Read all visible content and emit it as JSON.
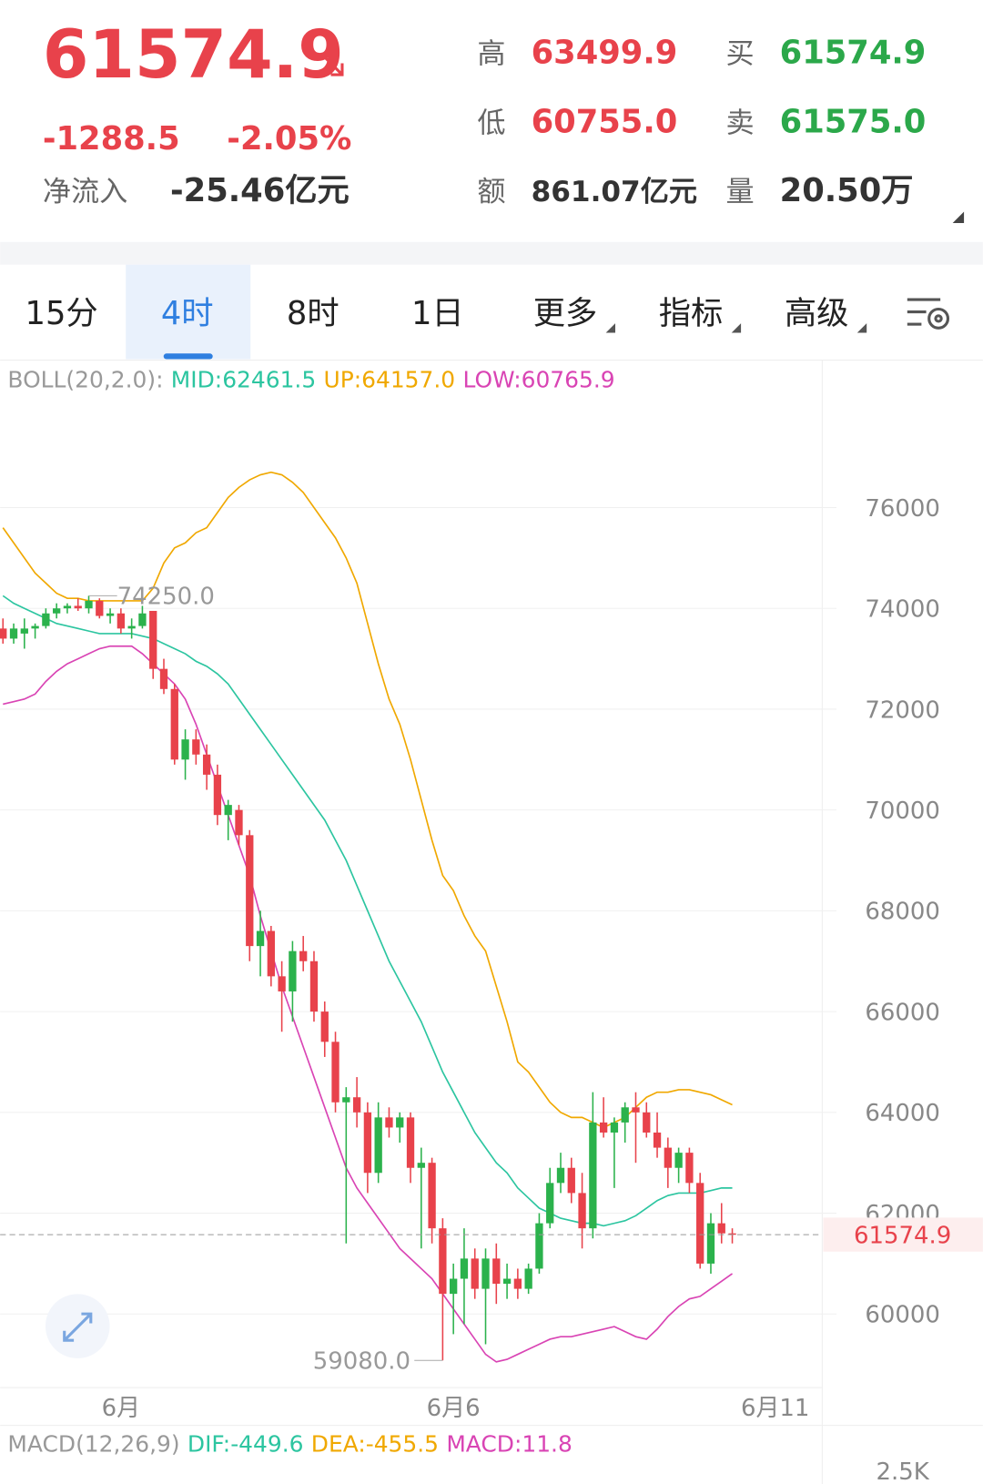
{
  "quote": {
    "price": "61574.9",
    "change": "-1288.5",
    "change_pct": "-2.05%",
    "inflow_label": "净流入",
    "inflow": "-25.46亿元"
  },
  "stats": [
    {
      "label": "高",
      "value": "63499.9",
      "color": "#e8424b"
    },
    {
      "label": "买",
      "value": "61574.9",
      "color": "#2ba84a"
    },
    {
      "label": "低",
      "value": "60755.0",
      "color": "#e8424b"
    },
    {
      "label": "卖",
      "value": "61575.0",
      "color": "#2ba84a"
    },
    {
      "label": "额",
      "value": "861.07亿元",
      "color": "#333333"
    },
    {
      "label": "量",
      "value": "20.50万",
      "color": "#333333"
    }
  ],
  "tabs": [
    "15分",
    "4时",
    "8时",
    "1日",
    "更多",
    "指标",
    "高级"
  ],
  "active_tab": 1,
  "chart_data": {
    "type": "candlestick",
    "legend_title": "BOLL(20,2.0):",
    "categories": [
      null,
      null,
      null,
      null,
      null,
      null,
      null,
      null,
      null,
      null,
      null,
      "6月",
      null,
      null,
      null,
      null,
      null,
      null,
      null,
      null,
      null,
      null,
      null,
      null,
      null,
      null,
      null,
      null,
      null,
      null,
      null,
      null,
      null,
      null,
      null,
      null,
      null,
      null,
      null,
      null,
      null,
      null,
      "6月6",
      null,
      null,
      null,
      null,
      null,
      null,
      null,
      null,
      null,
      null,
      null,
      null,
      null,
      null,
      null,
      null,
      null,
      null,
      null,
      null,
      null,
      null,
      null,
      null,
      null,
      null,
      null,
      null,
      null,
      "6月11"
    ],
    "open": [
      73600,
      73400,
      73500,
      73600,
      73650,
      73900,
      74000,
      74050,
      74000,
      74150,
      73850,
      73900,
      73600,
      73650,
      73950,
      72800,
      72400,
      71000,
      71400,
      71100,
      70700,
      69900,
      70000,
      69500,
      67300,
      67600,
      66700,
      66400,
      67200,
      67000,
      66000,
      65400,
      64200,
      64300,
      64000,
      62800,
      63900,
      63700,
      63900,
      62900,
      63000,
      61700,
      60400,
      60700,
      61100,
      60500,
      61100,
      60600,
      60700,
      60500,
      60900,
      61800,
      62600,
      62900,
      62400,
      61700,
      63800,
      63600,
      63800,
      64100,
      64000,
      63600,
      63300,
      62900,
      63200,
      62600,
      61000,
      61800,
      61600,
      null,
      null,
      null,
      null
    ],
    "high": [
      73800,
      73700,
      73800,
      73700,
      74000,
      74100,
      74100,
      74200,
      74250,
      74200,
      74000,
      74000,
      73800,
      74050,
      73950,
      73000,
      72500,
      71600,
      71600,
      71300,
      70900,
      70200,
      70100,
      69600,
      68000,
      67700,
      67000,
      67400,
      67500,
      67200,
      66200,
      65600,
      64500,
      64700,
      64200,
      64200,
      64100,
      64000,
      64000,
      63300,
      63100,
      61900,
      61000,
      61700,
      61300,
      61300,
      61400,
      61000,
      60900,
      61000,
      62000,
      62900,
      63200,
      63100,
      62800,
      64400,
      64300,
      63900,
      64200,
      64400,
      64200,
      64000,
      63500,
      63300,
      63300,
      62800,
      62000,
      62200,
      61700,
      null,
      null,
      null,
      null
    ],
    "low": [
      73300,
      73300,
      73200,
      73400,
      73600,
      73800,
      73900,
      73950,
      73900,
      73800,
      73700,
      73500,
      73400,
      73600,
      72600,
      72300,
      70900,
      70600,
      70900,
      70400,
      69700,
      69400,
      69300,
      67000,
      66700,
      66500,
      65600,
      65800,
      66800,
      65800,
      65100,
      64000,
      61400,
      63700,
      62400,
      62600,
      63500,
      63400,
      62600,
      61300,
      61400,
      59080,
      59600,
      59800,
      60300,
      59400,
      60200,
      60300,
      60300,
      60400,
      60800,
      61700,
      62400,
      62200,
      61300,
      61500,
      63500,
      62500,
      63400,
      63000,
      63500,
      63100,
      62500,
      62600,
      62400,
      60900,
      60800,
      61400,
      61400,
      null,
      null,
      null,
      null
    ],
    "close": [
      73400,
      73600,
      73600,
      73650,
      73900,
      74000,
      74050,
      74000,
      74150,
      73850,
      73900,
      73600,
      73650,
      73900,
      72800,
      72400,
      71000,
      71400,
      71100,
      70700,
      69900,
      70100,
      69500,
      67300,
      67600,
      66700,
      66400,
      67200,
      67000,
      66000,
      65400,
      64200,
      64300,
      64000,
      62800,
      63900,
      63700,
      63900,
      62900,
      63000,
      61700,
      60400,
      60700,
      61100,
      60500,
      61100,
      60600,
      60700,
      60500,
      60900,
      61800,
      62600,
      62900,
      62400,
      61700,
      63800,
      63600,
      63800,
      64100,
      64000,
      63600,
      63300,
      62900,
      63200,
      62600,
      61000,
      61800,
      61600,
      61574.9,
      null,
      null,
      null,
      null
    ],
    "up_color": "#2bb24c",
    "down_color": "#e8424b",
    "bands": [
      {
        "name": "MID:62461.5",
        "color": "#2cc5a0",
        "values": [
          74250,
          74100,
          74000,
          73900,
          73800,
          73700,
          73650,
          73600,
          73550,
          73500,
          73500,
          73500,
          73500,
          73450,
          73400,
          73300,
          73200,
          73100,
          72950,
          72850,
          72700,
          72500,
          72200,
          71900,
          71600,
          71300,
          71000,
          70700,
          70400,
          70100,
          69800,
          69400,
          69000,
          68500,
          68000,
          67500,
          67000,
          66600,
          66200,
          65800,
          65300,
          64800,
          64400,
          64000,
          63600,
          63300,
          63000,
          62800,
          62500,
          62300,
          62100,
          62000,
          61900,
          61850,
          61800,
          61800,
          61750,
          61800,
          61850,
          61950,
          62100,
          62250,
          62350,
          62400,
          62400,
          62400,
          62450,
          62500,
          62500,
          null,
          null,
          null,
          null
        ]
      },
      {
        "name": "UP:64157.0",
        "color": "#f0a800",
        "values": [
          75600,
          75300,
          75000,
          74700,
          74500,
          74300,
          74200,
          74200,
          74150,
          74150,
          74150,
          74150,
          74150,
          74150,
          74400,
          74900,
          75200,
          75300,
          75500,
          75600,
          75900,
          76200,
          76400,
          76550,
          76650,
          76700,
          76650,
          76500,
          76300,
          76000,
          75700,
          75400,
          75000,
          74500,
          73700,
          72900,
          72200,
          71700,
          71000,
          70200,
          69400,
          68700,
          68400,
          67900,
          67500,
          67200,
          66500,
          65800,
          65000,
          64800,
          64500,
          64200,
          64000,
          63900,
          63900,
          63800,
          63700,
          63800,
          63900,
          64100,
          64300,
          64400,
          64400,
          64450,
          64450,
          64400,
          64350,
          64250,
          64150,
          null,
          null,
          null,
          null
        ]
      },
      {
        "name": "LOW:60765.9",
        "color": "#d944b4",
        "values": [
          72100,
          72150,
          72200,
          72300,
          72550,
          72750,
          72900,
          73000,
          73100,
          73200,
          73250,
          73250,
          73250,
          73100,
          72900,
          72700,
          72500,
          72200,
          71700,
          71100,
          70500,
          69900,
          69300,
          68700,
          67900,
          67200,
          66500,
          65900,
          65300,
          64700,
          64100,
          63500,
          62900,
          62500,
          62200,
          61900,
          61600,
          61300,
          61100,
          60900,
          60700,
          60400,
          60100,
          59800,
          59500,
          59200,
          59050,
          59100,
          59200,
          59300,
          59400,
          59500,
          59550,
          59550,
          59600,
          59650,
          59700,
          59750,
          59650,
          59550,
          59500,
          59700,
          59950,
          60150,
          60300,
          60350,
          60500,
          60650,
          60800,
          null,
          null,
          null,
          null
        ]
      }
    ],
    "high_label": "74250.0",
    "low_label": "59080.0",
    "last_label": "61574.9",
    "ylim": [
      58540,
      78850
    ],
    "yticks": [
      60000,
      62000,
      64000,
      66000,
      68000,
      70000,
      72000,
      74000,
      76000
    ],
    "grid": true
  },
  "macd": {
    "title": "MACD(12,26,9)",
    "dif": "DIF:-449.6",
    "dea": "DEA:-455.5",
    "value": "MACD:11.8",
    "yticks": [
      {
        "value": 2500,
        "label": "2.5K"
      }
    ]
  }
}
